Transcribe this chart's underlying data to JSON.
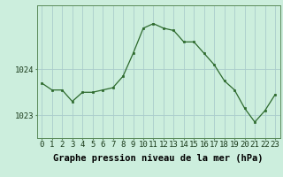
{
  "hours": [
    0,
    1,
    2,
    3,
    4,
    5,
    6,
    7,
    8,
    9,
    10,
    11,
    12,
    13,
    14,
    15,
    16,
    17,
    18,
    19,
    20,
    21,
    22,
    23
  ],
  "pressure": [
    1023.7,
    1023.55,
    1023.55,
    1023.3,
    1023.5,
    1023.5,
    1023.55,
    1023.6,
    1023.85,
    1024.35,
    1024.9,
    1025.0,
    1024.9,
    1024.85,
    1024.6,
    1024.6,
    1024.35,
    1024.1,
    1023.75,
    1023.55,
    1023.15,
    1022.85,
    1023.1,
    1023.45
  ],
  "line_color": "#2d6a2d",
  "marker_color": "#2d6a2d",
  "bg_color": "#cceedd",
  "grid_color": "#aacccc",
  "xlabel_text": "Graphe pression niveau de la mer (hPa)",
  "ylim": [
    1022.5,
    1025.4
  ],
  "xlim": [
    -0.5,
    23.5
  ],
  "tick_fontsize": 6.5,
  "xlabel_fontsize": 7.5
}
